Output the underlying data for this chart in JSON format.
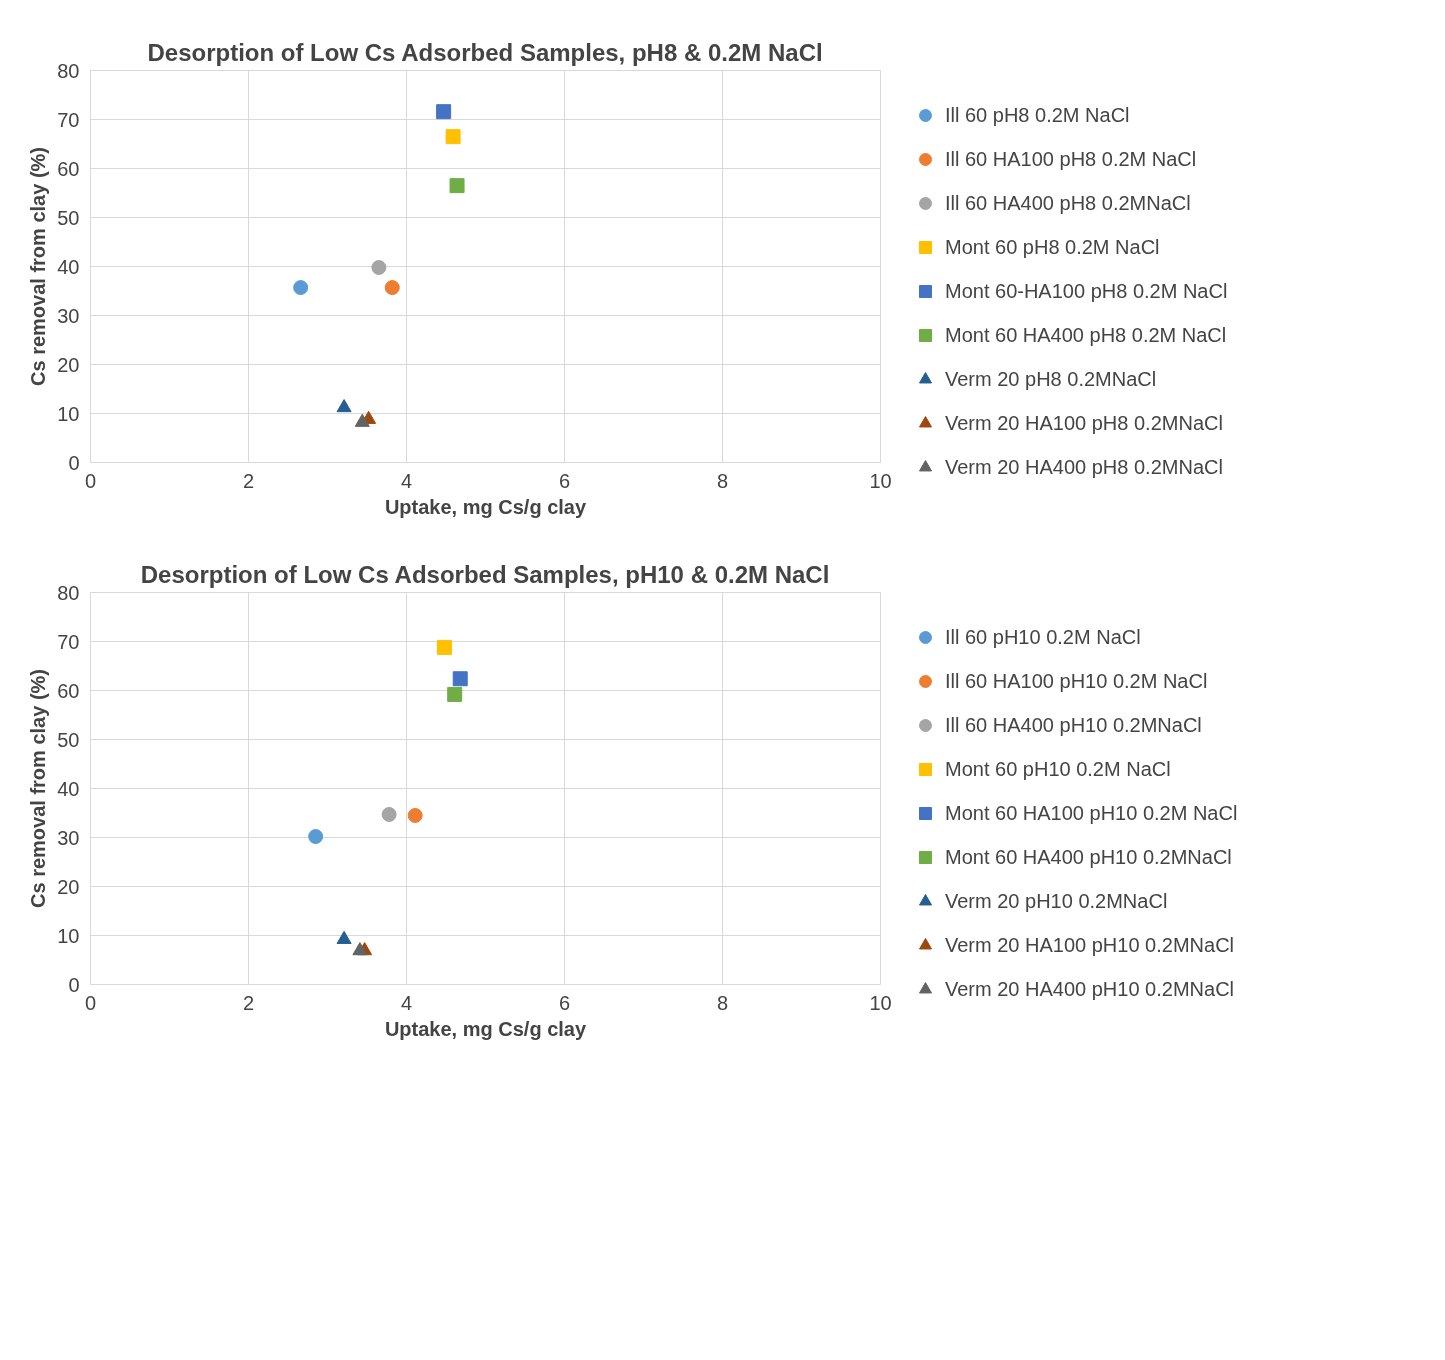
{
  "chart_data": [
    {
      "type": "scatter",
      "title": "Desorption of Low Cs Adsorbed Samples, pH8 & 0.2M NaCl",
      "xlabel": "Uptake, mg Cs/g clay",
      "ylabel": "Cs removal from clay (%)",
      "xlim": [
        0,
        10
      ],
      "ylim": [
        0,
        80
      ],
      "xticks": [
        0,
        2,
        4,
        6,
        8,
        10
      ],
      "yticks": [
        0,
        10,
        20,
        30,
        40,
        50,
        60,
        70,
        80
      ],
      "grid": true,
      "legend": "right",
      "series": [
        {
          "name": "Ill 60 pH8 0.2M NaCl",
          "color": "#5b9bd5",
          "marker": "circle",
          "x": [
            2.66
          ],
          "values": [
            35.7
          ]
        },
        {
          "name": "Ill 60 HA100 pH8 0.2M NaCl",
          "color": "#ed7d31",
          "marker": "circle",
          "x": [
            3.82
          ],
          "values": [
            35.7
          ]
        },
        {
          "name": "Ill 60 HA400 pH8 0.2MNaCl",
          "color": "#a5a5a5",
          "marker": "circle",
          "x": [
            3.65
          ],
          "values": [
            39.8
          ]
        },
        {
          "name": "Mont 60 pH8 0.2M NaCl",
          "color": "#ffc000",
          "marker": "square",
          "x": [
            4.59
          ],
          "values": [
            66.5
          ]
        },
        {
          "name": "Mont 60-HA100 pH8 0.2M NaCl",
          "color": "#4472c4",
          "marker": "square",
          "x": [
            4.47
          ],
          "values": [
            71.6
          ]
        },
        {
          "name": "Mont 60 HA400 pH8 0.2M NaCl",
          "color": "#70ad47",
          "marker": "square",
          "x": [
            4.64
          ],
          "values": [
            56.5
          ]
        },
        {
          "name": "Verm 20 pH8 0.2MNaCl",
          "color": "#255e91",
          "marker": "triangle",
          "x": [
            3.21
          ],
          "values": [
            11.2
          ]
        },
        {
          "name": "Verm 20 HA100 pH8 0.2MNaCl",
          "color": "#9e480e",
          "marker": "triangle",
          "x": [
            3.52
          ],
          "values": [
            8.8
          ]
        },
        {
          "name": "Verm 20 HA400 pH8 0.2MNaCl",
          "color": "#636363",
          "marker": "triangle",
          "x": [
            3.44
          ],
          "values": [
            8.2
          ]
        }
      ]
    },
    {
      "type": "scatter",
      "title": "Desorption of Low Cs Adsorbed Samples, pH10 & 0.2M NaCl",
      "xlabel": "Uptake, mg Cs/g clay",
      "ylabel": "Cs removal from clay (%)",
      "xlim": [
        0,
        10
      ],
      "ylim": [
        0,
        80
      ],
      "xticks": [
        0,
        2,
        4,
        6,
        8,
        10
      ],
      "yticks": [
        0,
        10,
        20,
        30,
        40,
        50,
        60,
        70,
        80
      ],
      "grid": true,
      "legend": "right",
      "series": [
        {
          "name": "Ill 60 pH10 0.2M NaCl",
          "color": "#5b9bd5",
          "marker": "circle",
          "x": [
            2.85
          ],
          "values": [
            30.2
          ]
        },
        {
          "name": "Ill 60 HA100 pH10 0.2M NaCl",
          "color": "#ed7d31",
          "marker": "circle",
          "x": [
            4.11
          ],
          "values": [
            34.5
          ]
        },
        {
          "name": "Ill 60 HA400 pH10 0.2MNaCl",
          "color": "#a5a5a5",
          "marker": "circle",
          "x": [
            3.78
          ],
          "values": [
            34.7
          ]
        },
        {
          "name": "Mont 60 pH10 0.2M NaCl",
          "color": "#ffc000",
          "marker": "square",
          "x": [
            4.48
          ],
          "values": [
            68.8
          ]
        },
        {
          "name": "Mont 60 HA100 pH10 0.2M NaCl",
          "color": "#4472c4",
          "marker": "square",
          "x": [
            4.68
          ],
          "values": [
            62.4
          ]
        },
        {
          "name": "Mont 60 HA400 pH10 0.2MNaCl",
          "color": "#70ad47",
          "marker": "square",
          "x": [
            4.61
          ],
          "values": [
            59.2
          ]
        },
        {
          "name": "Verm 20 pH10 0.2MNaCl",
          "color": "#255e91",
          "marker": "triangle",
          "x": [
            3.21
          ],
          "values": [
            9.2
          ]
        },
        {
          "name": "Verm 20 HA100 pH10 0.2MNaCl",
          "color": "#9e480e",
          "marker": "triangle",
          "x": [
            3.47
          ],
          "values": [
            6.9
          ]
        },
        {
          "name": "Verm 20 HA400 pH10 0.2MNaCl",
          "color": "#636363",
          "marker": "triangle",
          "x": [
            3.41
          ],
          "values": [
            6.9
          ]
        }
      ]
    }
  ]
}
